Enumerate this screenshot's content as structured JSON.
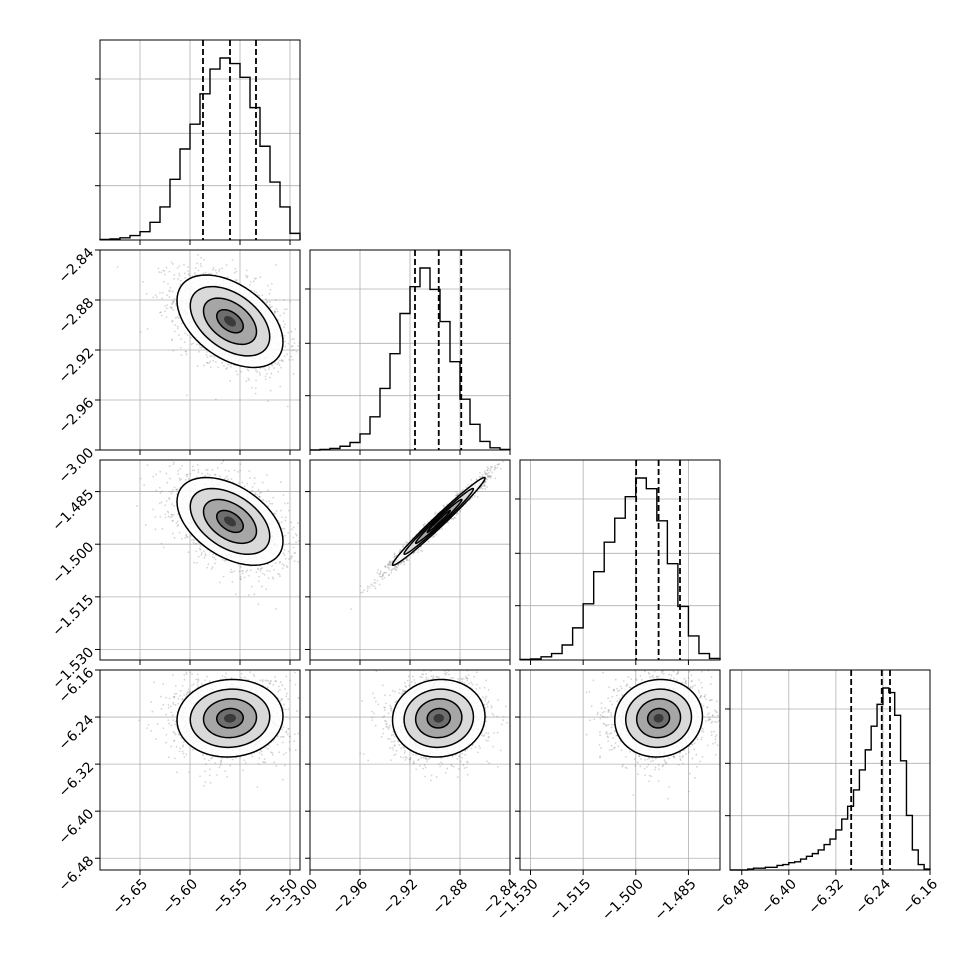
{
  "chart_data": {
    "type": "corner",
    "title": "",
    "colors": {
      "line": "#000000",
      "grid": "#b0b0b0",
      "axes_bg": "#ffffff",
      "points": "#888888"
    },
    "grid": true,
    "params": [
      {
        "name": "",
        "range": [
          -5.69,
          -5.49
        ],
        "ticks": [
          -5.65,
          -5.6,
          -5.55,
          -5.5
        ],
        "tick_labels": [
          "−5.65",
          "−5.60",
          "−5.55",
          "−5.50"
        ],
        "median": -5.56,
        "q16": -5.587,
        "q84": -5.534
      },
      {
        "name": "",
        "range": [
          -3.0,
          -2.84
        ],
        "ticks": [
          -3.0,
          -2.96,
          -2.92,
          -2.88,
          -2.84
        ],
        "tick_labels": [
          "−3.00",
          "−2.96",
          "−2.92",
          "−2.88",
          "−2.84"
        ],
        "median": -2.897,
        "q16": -2.916,
        "q84": -2.879
      },
      {
        "name": "",
        "range": [
          -1.533,
          -1.476
        ],
        "ticks": [
          -1.53,
          -1.515,
          -1.5,
          -1.485
        ],
        "tick_labels": [
          "−1.530",
          "−1.515",
          "−1.500",
          "−1.485"
        ],
        "median": -1.4935,
        "q16": -1.4999,
        "q84": -1.4874
      },
      {
        "name": "",
        "range": [
          -6.5,
          -6.16
        ],
        "ticks": [
          -6.48,
          -6.4,
          -6.32,
          -6.24,
          -6.16
        ],
        "tick_labels": [
          "−6.48",
          "−6.40",
          "−6.32",
          "−6.24",
          "−6.16"
        ],
        "median": -6.242,
        "q16": -6.294,
        "q84": -6.228
      }
    ],
    "histograms": [
      {
        "param": 0,
        "edges": [
          -5.69,
          -5.68,
          -5.67,
          -5.66,
          -5.65,
          -5.64,
          -5.63,
          -5.62,
          -5.61,
          -5.6,
          -5.59,
          -5.58,
          -5.57,
          -5.56,
          -5.55,
          -5.54,
          -5.53,
          -5.52,
          -5.51,
          -5.5,
          -5.49
        ],
        "counts": [
          1,
          2,
          4,
          8,
          15,
          32,
          60,
          110,
          165,
          210,
          265,
          310,
          330,
          320,
          295,
          240,
          170,
          105,
          60,
          12
        ]
      },
      {
        "param": 1,
        "edges": [
          -3.0,
          -2.992,
          -2.984,
          -2.976,
          -2.968,
          -2.96,
          -2.952,
          -2.944,
          -2.936,
          -2.928,
          -2.92,
          -2.912,
          -2.904,
          -2.896,
          -2.888,
          -2.88,
          -2.872,
          -2.864,
          -2.856,
          -2.848,
          -2.84
        ],
        "counts": [
          0,
          1,
          3,
          7,
          14,
          30,
          62,
          115,
          180,
          255,
          305,
          340,
          300,
          240,
          165,
          95,
          48,
          16,
          4,
          1
        ]
      },
      {
        "param": 2,
        "edges": [
          -1.533,
          -1.53,
          -1.527,
          -1.524,
          -1.521,
          -1.518,
          -1.515,
          -1.512,
          -1.509,
          -1.506,
          -1.503,
          -1.5,
          -1.497,
          -1.494,
          -1.491,
          -1.488,
          -1.485,
          -1.482,
          -1.479,
          -1.476
        ],
        "counts": [
          1,
          2,
          6,
          12,
          28,
          60,
          105,
          165,
          220,
          265,
          305,
          340,
          320,
          260,
          180,
          100,
          45,
          12,
          3
        ]
      },
      {
        "param": 3,
        "edges": [
          -6.5,
          -6.49,
          -6.48,
          -6.47,
          -6.46,
          -6.45,
          -6.44,
          -6.43,
          -6.42,
          -6.41,
          -6.4,
          -6.39,
          -6.38,
          -6.37,
          -6.36,
          -6.35,
          -6.34,
          -6.33,
          -6.32,
          -6.31,
          -6.3,
          -6.29,
          -6.28,
          -6.27,
          -6.26,
          -6.25,
          -6.24,
          -6.23,
          -6.22,
          -6.21,
          -6.2,
          -6.19,
          -6.18,
          -6.17,
          -6.16
        ],
        "counts": [
          0,
          0,
          0,
          1,
          2,
          2,
          3,
          3,
          5,
          6,
          8,
          9,
          12,
          15,
          18,
          22,
          28,
          34,
          44,
          56,
          70,
          88,
          110,
          132,
          158,
          182,
          200,
          195,
          170,
          120,
          60,
          22,
          6,
          1
        ]
      }
    ],
    "joint": [
      {
        "x_param": 0,
        "y_param": 1,
        "corr": -0.45
      },
      {
        "x_param": 0,
        "y_param": 2,
        "corr": -0.45
      },
      {
        "x_param": 1,
        "y_param": 2,
        "corr": 0.985
      },
      {
        "x_param": 0,
        "y_param": 3,
        "corr": 0.05
      },
      {
        "x_param": 1,
        "y_param": 3,
        "corr": 0.05
      },
      {
        "x_param": 2,
        "y_param": 3,
        "corr": 0.05
      }
    ],
    "contour_levels_sigma": [
      0.5,
      1.0,
      1.5,
      2.0
    ]
  }
}
